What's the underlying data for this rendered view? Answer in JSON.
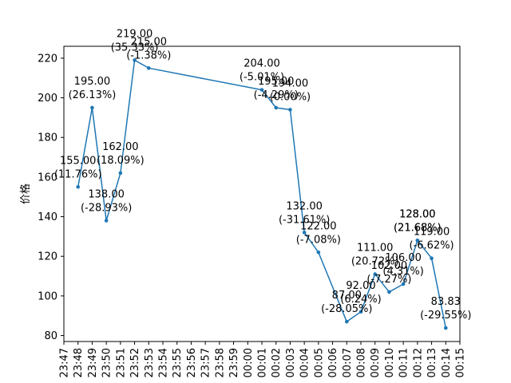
{
  "chart_data": {
    "type": "line",
    "title": "",
    "xlabel": "",
    "ylabel": "价格",
    "ylim": [
      77,
      226
    ],
    "y_ticks": [
      80,
      100,
      120,
      140,
      160,
      180,
      200,
      220
    ],
    "x_tick_labels": [
      "23:47",
      "23:48",
      "23:49",
      "23:50",
      "23:51",
      "23:52",
      "23:53",
      "23:54",
      "23:55",
      "23:56",
      "23:57",
      "23:58",
      "23:59",
      "00:00",
      "00:01",
      "00:02",
      "00:03",
      "00:04",
      "00:05",
      "00:06",
      "00:07",
      "00:08",
      "00:09",
      "00:10",
      "00:11",
      "00:12",
      "00:13",
      "00:14",
      "00:15"
    ],
    "grid": false,
    "color": "#1f77b4",
    "series": [
      {
        "x": [
          "23:48",
          "23:49",
          "23:50",
          "23:51",
          "23:52",
          "23:53",
          "00:01",
          "00:02",
          "00:03",
          "00:04",
          "00:05",
          "00:07",
          "00:08",
          "00:09",
          "00:10",
          "00:11",
          "00:12",
          "00:12",
          "00:13",
          "00:14"
        ],
        "values": [
          155.0,
          195.0,
          138.0,
          162.0,
          219.0,
          215.0,
          204.0,
          195.0,
          194.0,
          132.0,
          122.0,
          87.0,
          92.0,
          111.0,
          102.0,
          106.0,
          128.0,
          128.0,
          119.0,
          83.83
        ],
        "value_labels": [
          "155.00",
          "195.00",
          "138.00",
          "162.00",
          "219.00",
          "215.00",
          "204.00",
          "195.00",
          "194.00",
          "132.00",
          "122.00",
          "87.00",
          "92.00",
          "111.00",
          "102.00",
          "106.00",
          "128.00",
          "128.00",
          "119.00",
          "83.83"
        ],
        "pct_labels": [
          "(11.76%)",
          "(26.13%)",
          "(-28.93%)",
          "(18.09%)",
          "(35.33%)",
          "(-1.38%)",
          "(-5.01%)",
          "(-4.29%)",
          "(0.00%)",
          "(-31.61%)",
          "(-7.08%)",
          "(-28.05%)",
          "(6.24%)",
          "(20.72%)",
          "(-7.27%)",
          "(4.31%)",
          "(21.68%)",
          "(21.68%)",
          "(-6.62%)",
          "(-29.55%)"
        ]
      }
    ]
  }
}
